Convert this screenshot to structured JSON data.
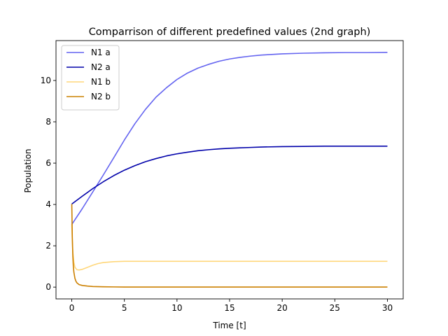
{
  "chart_data": {
    "type": "line",
    "title": "Comparrison of different predefined values (2nd graph)",
    "xlabel": "Time [t]",
    "ylabel": "Population",
    "xlim": [
      -1.5,
      31.5
    ],
    "ylim": [
      -0.57,
      11.93
    ],
    "xticks": [
      0,
      5,
      10,
      15,
      20,
      25,
      30
    ],
    "yticks": [
      0,
      2,
      4,
      6,
      8,
      10
    ],
    "grid": false,
    "legend_position": "top-left",
    "series": [
      {
        "name": "N1 a",
        "color": "#6464f0",
        "x": [
          0,
          1,
          2,
          3,
          4,
          5,
          6,
          7,
          8,
          9,
          10,
          11,
          12,
          13,
          14,
          15,
          16,
          17,
          18,
          19,
          20,
          22,
          24,
          26,
          28,
          30
        ],
        "y": [
          3.03,
          3.8,
          4.61,
          5.43,
          6.27,
          7.12,
          7.91,
          8.6,
          9.19,
          9.65,
          10.05,
          10.36,
          10.6,
          10.78,
          10.93,
          11.04,
          11.12,
          11.18,
          11.23,
          11.26,
          11.29,
          11.32,
          11.34,
          11.35,
          11.35,
          11.36
        ]
      },
      {
        "name": "N2 a",
        "color": "#0000aa",
        "x": [
          0,
          1,
          2,
          3,
          4,
          5,
          6,
          7,
          8,
          9,
          10,
          11,
          12,
          13,
          14,
          15,
          16,
          17,
          18,
          20,
          22,
          24,
          26,
          28,
          30
        ],
        "y": [
          4.02,
          4.4,
          4.77,
          5.1,
          5.4,
          5.66,
          5.88,
          6.07,
          6.22,
          6.35,
          6.45,
          6.53,
          6.6,
          6.65,
          6.69,
          6.72,
          6.74,
          6.76,
          6.78,
          6.8,
          6.81,
          6.82,
          6.82,
          6.82,
          6.82
        ]
      },
      {
        "name": "N1 b",
        "color": "#ffd77a",
        "x": [
          0,
          0.05,
          0.1,
          0.2,
          0.3,
          0.5,
          0.7,
          1,
          1.5,
          2,
          2.5,
          3,
          4,
          5,
          7,
          10,
          15,
          20,
          25,
          30
        ],
        "y": [
          3.05,
          2.3,
          1.7,
          1.2,
          0.96,
          0.84,
          0.83,
          0.86,
          0.96,
          1.06,
          1.14,
          1.19,
          1.23,
          1.25,
          1.25,
          1.25,
          1.25,
          1.25,
          1.25,
          1.25
        ]
      },
      {
        "name": "N2 b",
        "color": "#cc8000",
        "x": [
          0,
          0.05,
          0.1,
          0.15,
          0.2,
          0.3,
          0.4,
          0.5,
          0.7,
          1,
          1.5,
          2,
          3,
          4,
          5,
          7,
          10,
          15,
          20,
          25,
          30
        ],
        "y": [
          4.02,
          2.4,
          1.5,
          1.0,
          0.72,
          0.42,
          0.28,
          0.2,
          0.12,
          0.08,
          0.05,
          0.03,
          0.015,
          0.01,
          0.005,
          0.003,
          0.002,
          0.002,
          0.002,
          0.002,
          0.002
        ]
      }
    ]
  }
}
